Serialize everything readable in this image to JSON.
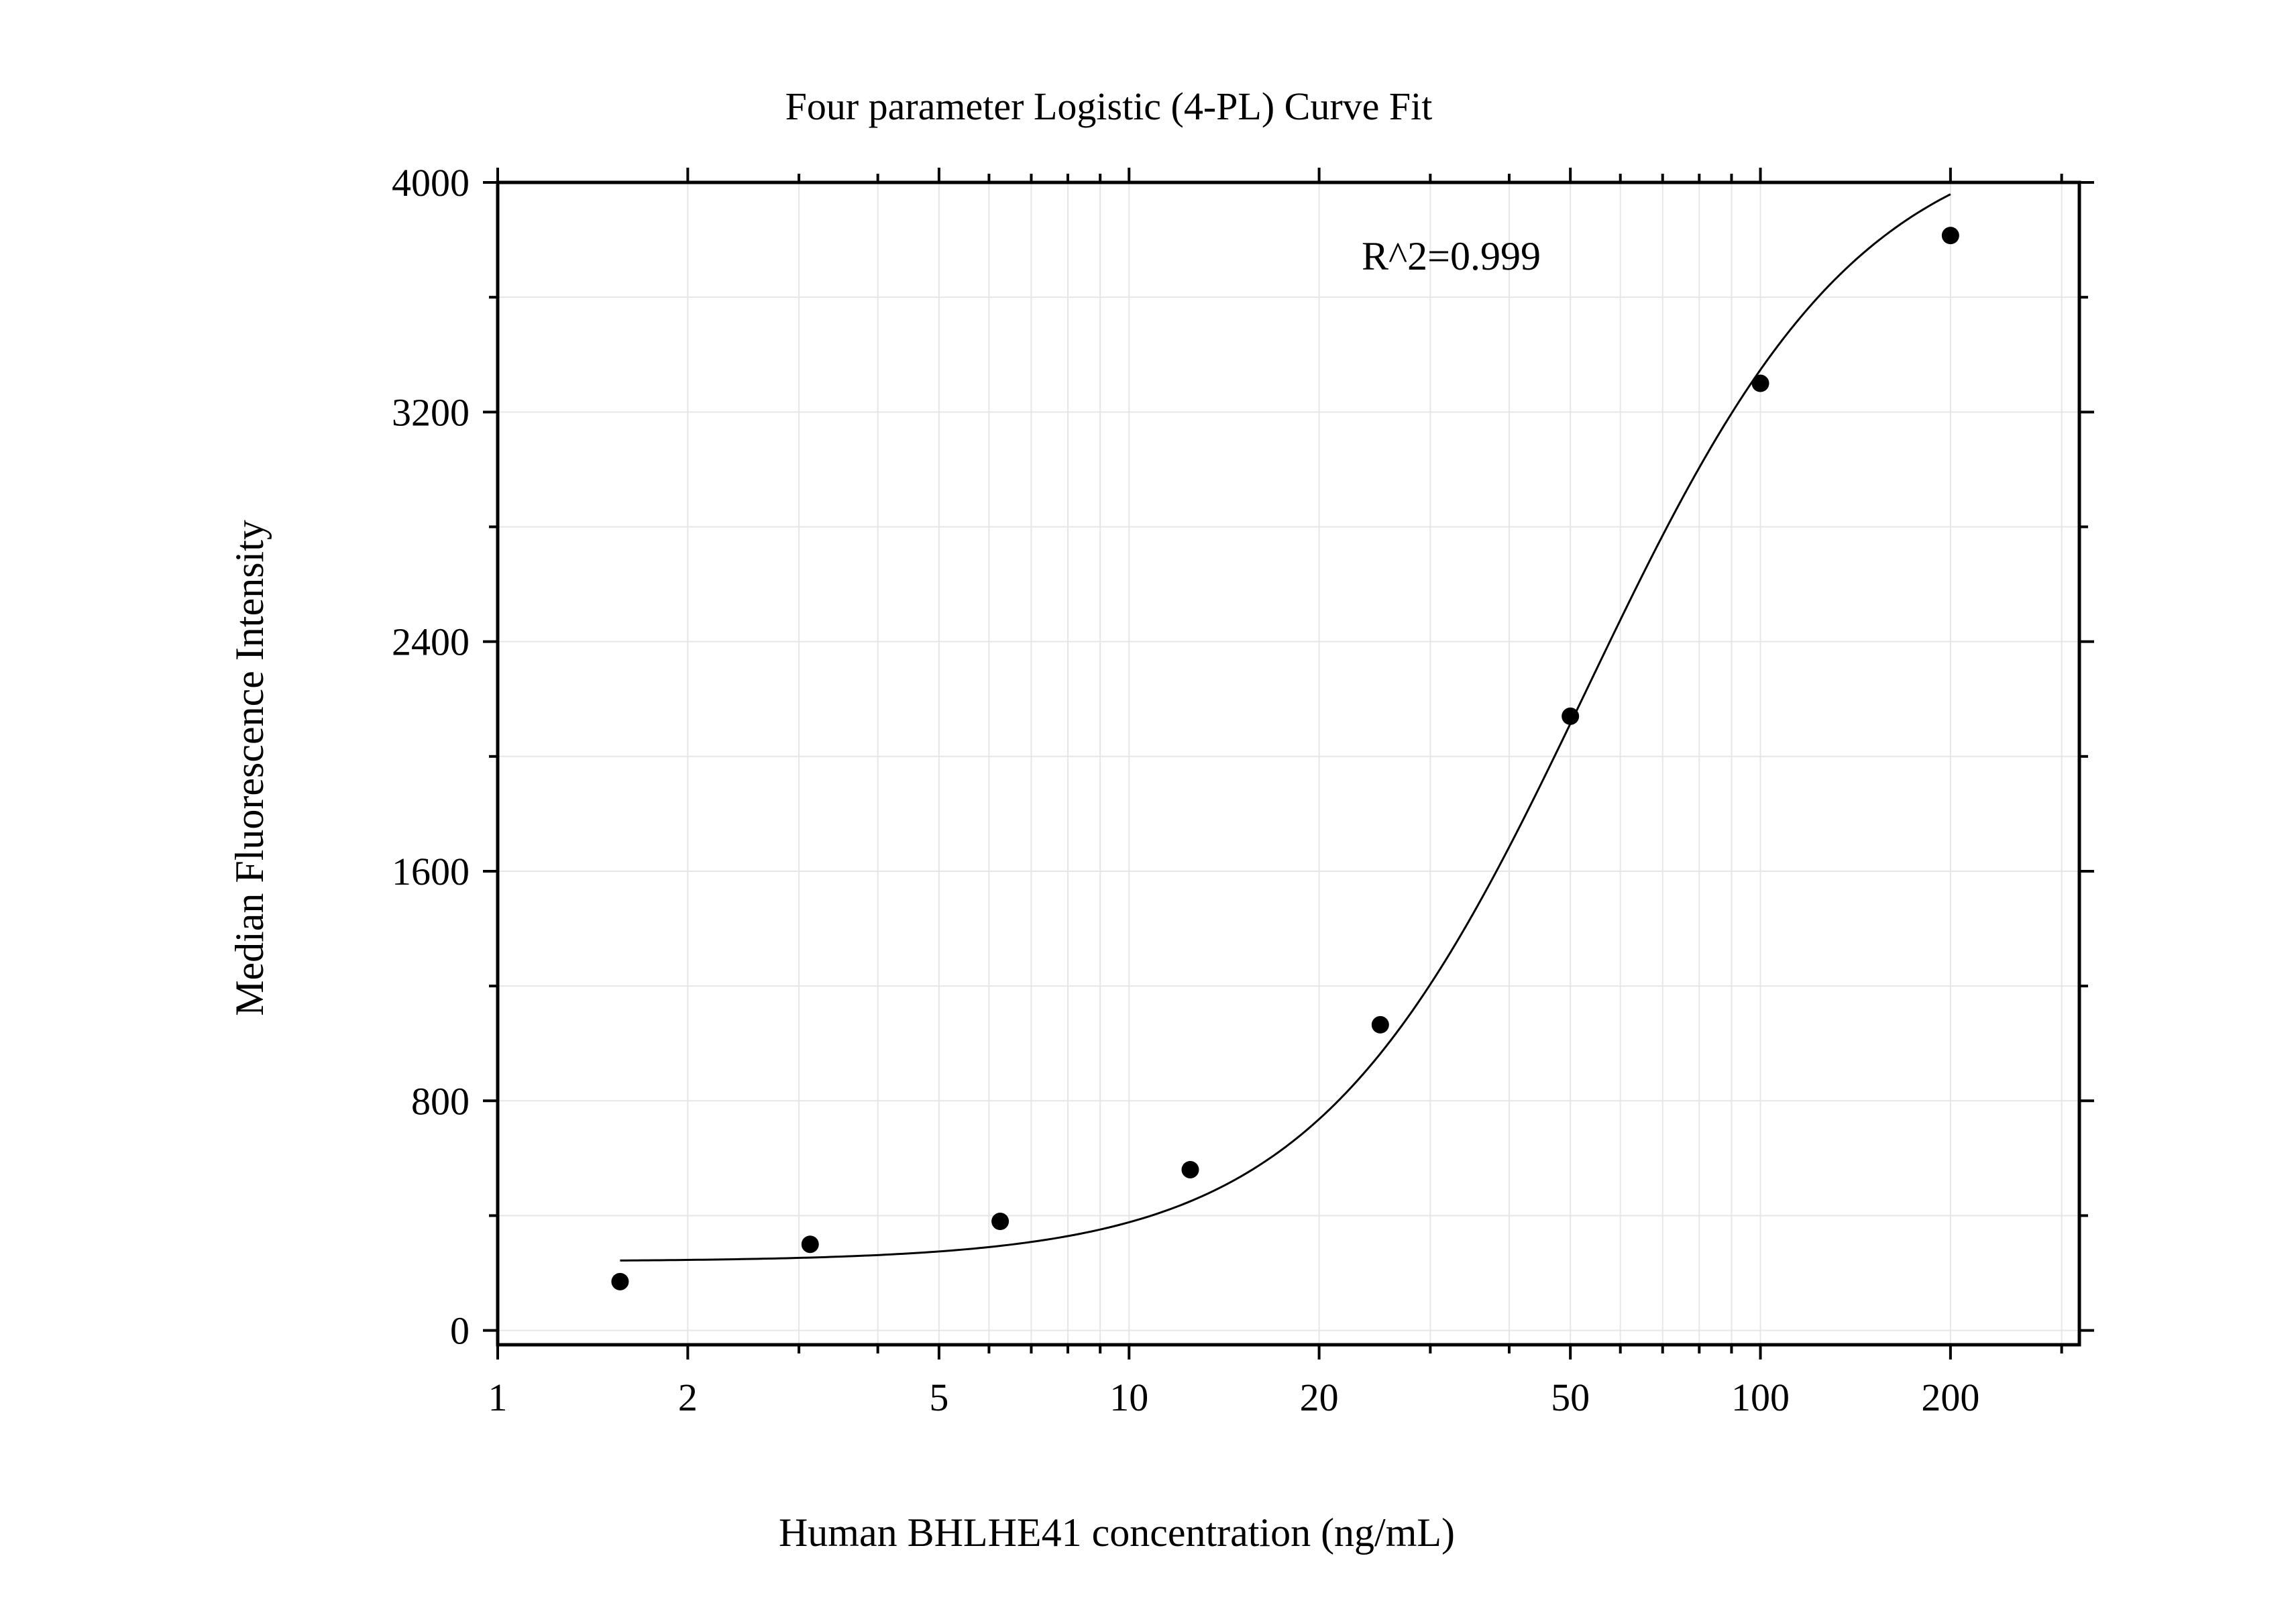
{
  "chart_data": {
    "type": "scatter",
    "title": "Four parameter Logistic (4-PL) Curve Fit",
    "xlabel": "Human BHLHE41 concentration (ng/mL)",
    "ylabel": "Median Fluorescence Intensity",
    "x_scale": "log10",
    "xlim": [
      1,
      320
    ],
    "ylim": [
      -50,
      4000
    ],
    "x_ticks": [
      1,
      2,
      5,
      10,
      20,
      50,
      100,
      200
    ],
    "x_tick_labels": [
      "1",
      "2",
      "5",
      "10",
      "20",
      "50",
      "100",
      "200"
    ],
    "y_ticks": [
      0,
      800,
      1600,
      2400,
      3200,
      4000
    ],
    "y_tick_labels": [
      "0",
      "800",
      "1600",
      "2400",
      "3200",
      "4000"
    ],
    "grid": true,
    "annotation": "R^2=0.999",
    "series": [
      {
        "type": "scatter",
        "x": [
          1.5625,
          3.125,
          6.25,
          12.5,
          25,
          50,
          100,
          200
        ],
        "y": [
          170,
          300,
          380,
          560,
          1065,
          2140,
          3300,
          3815
        ]
      }
    ],
    "fit_curve": {
      "model": "4PL",
      "bottom": 240,
      "top": 4220,
      "ec50": 53,
      "hill": 2.0,
      "x_range": [
        1.5625,
        200
      ]
    }
  },
  "colors": {
    "points": "#000000",
    "curve": "#000000",
    "grid": "#e6e6e6",
    "axes": "#000000"
  }
}
